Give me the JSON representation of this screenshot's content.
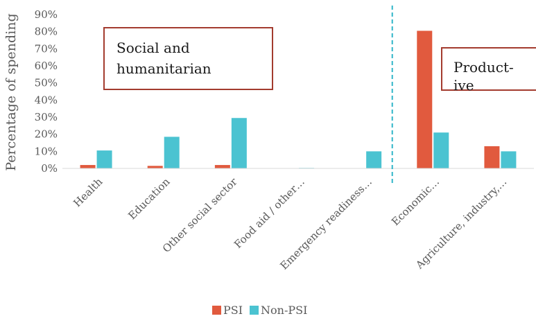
{
  "chart_data": {
    "type": "bar",
    "ylabel": "Percentage of spending",
    "ylim": [
      0,
      90
    ],
    "yticks": [
      "0%",
      "10%",
      "20%",
      "30%",
      "40%",
      "50%",
      "60%",
      "70%",
      "80%",
      "90%"
    ],
    "categories": [
      "Health",
      "Education",
      "Other social sector",
      "Food aid / other…",
      "Emergency readiness…",
      "Economic…",
      "Agriculture, industry,…"
    ],
    "series": [
      {
        "name": "PSI",
        "color": "#E15A3E",
        "values": [
          2,
          1.5,
          2,
          0,
          0,
          80.5,
          13
        ]
      },
      {
        "name": "Non-PSI",
        "color": "#4BC3D1",
        "values": [
          10.5,
          18.5,
          29.5,
          0.3,
          10,
          21,
          10
        ]
      }
    ],
    "annotations": {
      "social_box": {
        "lines": [
          "Social and",
          "humanitarian"
        ]
      },
      "productive_box": {
        "lines": [
          "Product-",
          "ive"
        ]
      }
    },
    "divider_color": "#2FB5C8",
    "box_color": "#A33B2E",
    "legend_position": "bottom-center",
    "grid": false
  }
}
